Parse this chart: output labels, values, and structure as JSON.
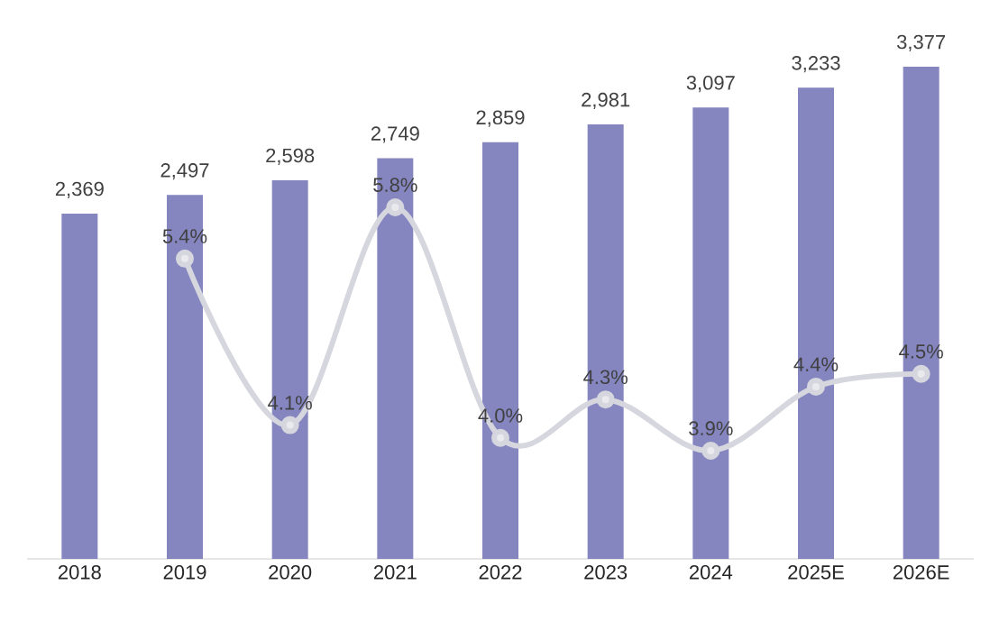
{
  "chart_data": {
    "type": "bar",
    "categories": [
      "2018",
      "2019",
      "2020",
      "2021",
      "2022",
      "2023",
      "2024",
      "2025E",
      "2026E"
    ],
    "tick_labels": "x",
    "grid": false,
    "series": [
      {
        "color": "#8585c0",
        "values": [
          2369,
          2497,
          2598,
          2749,
          2859,
          2981,
          3097,
          3233,
          3377
        ],
        "value_labels": [
          "2,369",
          "2,497",
          "2,598",
          "2,749",
          "2,859",
          "2,981",
          "3,097",
          "3,233",
          "3,377"
        ]
      },
      {
        "type": "line",
        "axis": "y2",
        "color": "#d6d6de",
        "marker": "circle",
        "values": [
          null,
          5.4,
          4.1,
          5.8,
          4.0,
          4.3,
          3.9,
          4.4,
          4.5
        ],
        "value_labels": [
          null,
          "5.4%",
          "4.1%",
          "5.8%",
          "4.0%",
          "4.3%",
          "3.9%",
          "4.4%",
          "4.5%"
        ]
      }
    ]
  }
}
